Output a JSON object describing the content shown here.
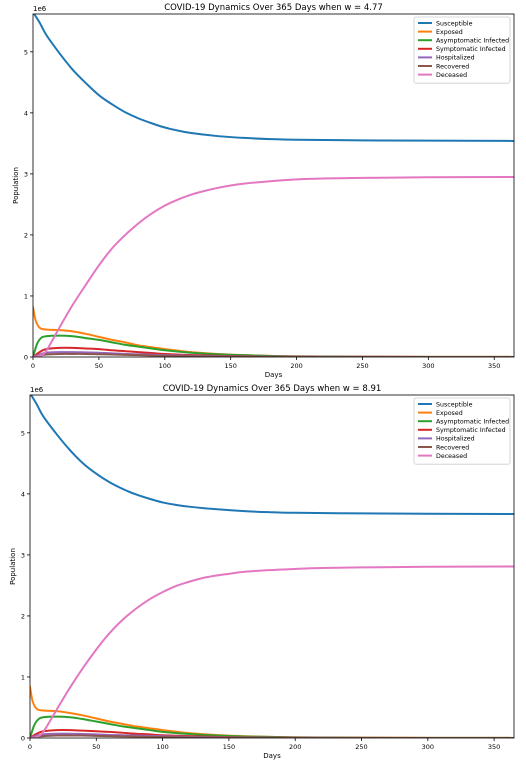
{
  "chart_data": [
    {
      "type": "line",
      "title": "COVID-19 Dynamics Over 365 Days when w = 4.77",
      "xlabel": "Days",
      "ylabel": "Population",
      "offset_label": "1e6",
      "xlim": [
        0,
        365
      ],
      "ylim": [
        0,
        5.62
      ],
      "xticks": [
        "0",
        "50",
        "100",
        "150",
        "200",
        "250",
        "300",
        "350"
      ],
      "yticks": [
        "0",
        "1",
        "2",
        "3",
        "4",
        "5"
      ],
      "grid": false,
      "legend_position": "top-right",
      "series": [
        {
          "name": "Susceptible",
          "color": "#1f77b4",
          "x": [
            0,
            5,
            10,
            20,
            30,
            40,
            50,
            60,
            70,
            80,
            90,
            100,
            110,
            120,
            140,
            160,
            180,
            200,
            250,
            300,
            365
          ],
          "y": [
            5.65,
            5.48,
            5.28,
            4.98,
            4.71,
            4.49,
            4.29,
            4.14,
            4.01,
            3.91,
            3.83,
            3.76,
            3.71,
            3.67,
            3.62,
            3.59,
            3.57,
            3.56,
            3.55,
            3.545,
            3.54
          ]
        },
        {
          "name": "Exposed",
          "color": "#ff7f0e",
          "x": [
            0,
            2,
            5,
            10,
            20,
            30,
            40,
            50,
            60,
            70,
            80,
            90,
            100,
            120,
            140,
            160,
            200,
            250,
            300,
            365
          ],
          "y": [
            0.82,
            0.6,
            0.48,
            0.45,
            0.44,
            0.42,
            0.38,
            0.33,
            0.28,
            0.24,
            0.19,
            0.16,
            0.13,
            0.08,
            0.05,
            0.03,
            0.01,
            0.005,
            0.002,
            0.001
          ]
        },
        {
          "name": "Asymptomatic Infected",
          "color": "#2ca02c",
          "x": [
            0,
            3,
            6,
            10,
            20,
            30,
            40,
            50,
            60,
            70,
            80,
            90,
            100,
            120,
            140,
            160,
            200,
            250,
            300,
            365
          ],
          "y": [
            0.0,
            0.21,
            0.31,
            0.34,
            0.35,
            0.34,
            0.31,
            0.28,
            0.24,
            0.2,
            0.17,
            0.14,
            0.11,
            0.07,
            0.045,
            0.03,
            0.01,
            0.004,
            0.002,
            0.001
          ]
        },
        {
          "name": "Symptomatic Infected",
          "color": "#d62728",
          "x": [
            0,
            5,
            10,
            20,
            30,
            40,
            50,
            60,
            70,
            80,
            90,
            100,
            120,
            140,
            160,
            200,
            250,
            300,
            365
          ],
          "y": [
            0.0,
            0.08,
            0.13,
            0.15,
            0.15,
            0.14,
            0.13,
            0.11,
            0.095,
            0.08,
            0.065,
            0.05,
            0.032,
            0.02,
            0.012,
            0.005,
            0.002,
            0.001,
            0.0
          ]
        },
        {
          "name": "Hospitalized",
          "color": "#9467bd",
          "x": [
            0,
            5,
            10,
            20,
            30,
            40,
            50,
            60,
            70,
            80,
            100,
            120,
            150,
            200,
            250,
            365
          ],
          "y": [
            0.0,
            0.04,
            0.07,
            0.08,
            0.08,
            0.075,
            0.07,
            0.06,
            0.05,
            0.045,
            0.03,
            0.02,
            0.01,
            0.004,
            0.002,
            0.0
          ]
        },
        {
          "name": "Recovered",
          "color": "#8c564b",
          "x": [
            0,
            5,
            10,
            20,
            30,
            40,
            50,
            60,
            70,
            80,
            100,
            120,
            150,
            200,
            250,
            365
          ],
          "y": [
            0.0,
            0.02,
            0.04,
            0.05,
            0.05,
            0.05,
            0.045,
            0.04,
            0.035,
            0.03,
            0.02,
            0.013,
            0.007,
            0.003,
            0.001,
            0.0
          ]
        },
        {
          "name": "Deceased",
          "color": "#e377c2",
          "x": [
            0,
            5,
            10,
            20,
            30,
            40,
            50,
            60,
            70,
            80,
            90,
            100,
            110,
            120,
            130,
            140,
            150,
            160,
            180,
            200,
            220,
            250,
            300,
            365
          ],
          "y": [
            0.0,
            0.02,
            0.1,
            0.48,
            0.85,
            1.18,
            1.5,
            1.78,
            2.0,
            2.19,
            2.35,
            2.48,
            2.58,
            2.66,
            2.72,
            2.77,
            2.81,
            2.84,
            2.88,
            2.91,
            2.925,
            2.935,
            2.945,
            2.95
          ]
        }
      ]
    },
    {
      "type": "line",
      "title": "COVID-19 Dynamics Over 365 Days when w = 8.91",
      "xlabel": "Days",
      "ylabel": "Population",
      "offset_label": "1e6",
      "xlim": [
        0,
        365
      ],
      "ylim": [
        0,
        5.62
      ],
      "xticks": [
        "0",
        "50",
        "100",
        "150",
        "200",
        "250",
        "300",
        "350"
      ],
      "yticks": [
        "0",
        "1",
        "2",
        "3",
        "4",
        "5"
      ],
      "grid": false,
      "legend_position": "top-right",
      "series": [
        {
          "name": "Susceptible",
          "color": "#1f77b4",
          "x": [
            0,
            5,
            10,
            20,
            30,
            40,
            50,
            60,
            70,
            80,
            90,
            100,
            110,
            120,
            140,
            160,
            180,
            200,
            250,
            300,
            365
          ],
          "y": [
            5.65,
            5.47,
            5.27,
            4.98,
            4.72,
            4.5,
            4.33,
            4.19,
            4.08,
            3.99,
            3.92,
            3.86,
            3.82,
            3.79,
            3.75,
            3.72,
            3.7,
            3.69,
            3.68,
            3.675,
            3.67
          ]
        },
        {
          "name": "Exposed",
          "color": "#ff7f0e",
          "x": [
            0,
            2,
            5,
            10,
            20,
            30,
            40,
            50,
            60,
            70,
            80,
            90,
            100,
            120,
            140,
            160,
            200,
            250,
            300,
            365
          ],
          "y": [
            0.84,
            0.6,
            0.48,
            0.45,
            0.44,
            0.41,
            0.37,
            0.32,
            0.27,
            0.23,
            0.19,
            0.16,
            0.13,
            0.08,
            0.05,
            0.03,
            0.01,
            0.005,
            0.002,
            0.001
          ]
        },
        {
          "name": "Asymptomatic Infected",
          "color": "#2ca02c",
          "x": [
            0,
            3,
            6,
            10,
            20,
            30,
            40,
            50,
            60,
            70,
            80,
            90,
            100,
            120,
            140,
            160,
            200,
            250,
            300,
            365
          ],
          "y": [
            0.0,
            0.2,
            0.3,
            0.34,
            0.35,
            0.34,
            0.31,
            0.27,
            0.23,
            0.19,
            0.16,
            0.13,
            0.1,
            0.065,
            0.04,
            0.025,
            0.01,
            0.004,
            0.002,
            0.001
          ]
        },
        {
          "name": "Symptomatic Infected",
          "color": "#d62728",
          "x": [
            0,
            5,
            10,
            20,
            30,
            40,
            50,
            60,
            70,
            80,
            90,
            100,
            120,
            140,
            160,
            200,
            250,
            300,
            365
          ],
          "y": [
            0.0,
            0.07,
            0.11,
            0.13,
            0.13,
            0.12,
            0.11,
            0.1,
            0.085,
            0.07,
            0.06,
            0.045,
            0.03,
            0.018,
            0.011,
            0.005,
            0.002,
            0.001,
            0.0
          ]
        },
        {
          "name": "Hospitalized",
          "color": "#9467bd",
          "x": [
            0,
            5,
            10,
            20,
            30,
            40,
            50,
            60,
            70,
            80,
            100,
            120,
            150,
            200,
            250,
            365
          ],
          "y": [
            0.0,
            0.04,
            0.06,
            0.07,
            0.07,
            0.065,
            0.06,
            0.05,
            0.045,
            0.04,
            0.028,
            0.018,
            0.009,
            0.003,
            0.001,
            0.0
          ]
        },
        {
          "name": "Recovered",
          "color": "#8c564b",
          "x": [
            0,
            5,
            10,
            20,
            30,
            40,
            50,
            60,
            70,
            80,
            100,
            120,
            150,
            200,
            250,
            365
          ],
          "y": [
            0.0,
            0.02,
            0.03,
            0.04,
            0.04,
            0.04,
            0.035,
            0.03,
            0.027,
            0.023,
            0.016,
            0.01,
            0.005,
            0.002,
            0.001,
            0.0
          ]
        },
        {
          "name": "Deceased",
          "color": "#e377c2",
          "x": [
            0,
            5,
            10,
            20,
            30,
            40,
            50,
            60,
            70,
            80,
            90,
            100,
            110,
            120,
            130,
            140,
            150,
            160,
            180,
            200,
            220,
            250,
            300,
            365
          ],
          "y": [
            0.0,
            0.02,
            0.1,
            0.46,
            0.82,
            1.15,
            1.45,
            1.72,
            1.94,
            2.12,
            2.27,
            2.39,
            2.49,
            2.56,
            2.62,
            2.66,
            2.69,
            2.72,
            2.75,
            2.77,
            2.785,
            2.795,
            2.805,
            2.81
          ]
        }
      ]
    }
  ]
}
